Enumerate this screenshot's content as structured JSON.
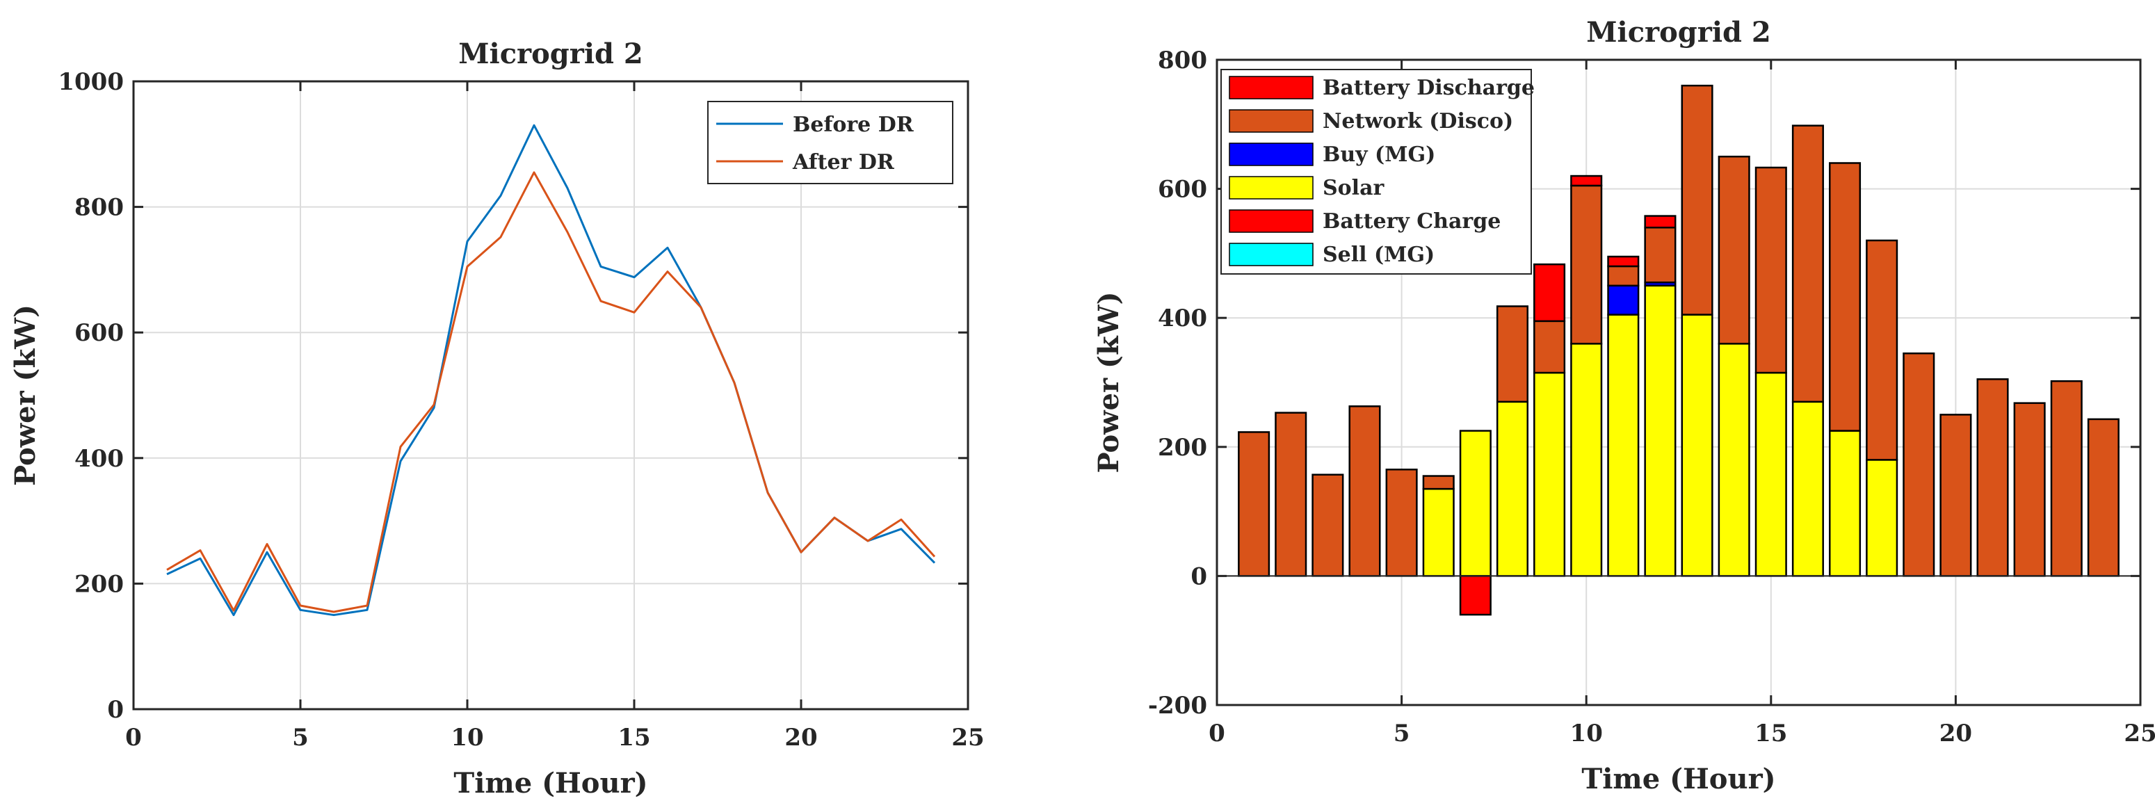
{
  "colors": {
    "before_dr": "#0072BD",
    "after_dr": "#D95319",
    "network": "#D95319",
    "solar": "#FFFF00",
    "battery": "#FF0000",
    "buy": "#0000FF",
    "sell": "#00FFFF"
  },
  "chart_data": [
    {
      "type": "line",
      "title": "Microgrid 2",
      "xlabel": "Time (Hour)",
      "ylabel": "Power (kW)",
      "xlim": [
        0,
        25
      ],
      "ylim": [
        0,
        1000
      ],
      "xticks": [
        "0",
        "5",
        "10",
        "15",
        "20",
        "25"
      ],
      "yticks": [
        "0",
        "200",
        "400",
        "600",
        "800",
        "1000"
      ],
      "grid": true,
      "legend_position": "top-right",
      "x": [
        1,
        2,
        3,
        4,
        5,
        6,
        7,
        8,
        9,
        10,
        11,
        12,
        13,
        14,
        15,
        16,
        17,
        18,
        19,
        20,
        21,
        22,
        23,
        24
      ],
      "series": [
        {
          "name": "Before DR",
          "color": "#0072BD",
          "values": [
            215,
            240,
            150,
            250,
            158,
            150,
            158,
            395,
            480,
            745,
            818,
            930,
            830,
            705,
            688,
            735,
            640,
            520,
            345,
            250,
            305,
            268,
            287,
            233
          ]
        },
        {
          "name": "After DR",
          "color": "#D95319",
          "values": [
            222,
            253,
            157,
            263,
            165,
            155,
            165,
            418,
            485,
            705,
            752,
            855,
            760,
            650,
            632,
            697,
            640,
            520,
            345,
            250,
            305,
            268,
            302,
            243
          ]
        }
      ]
    },
    {
      "type": "bar",
      "stacked": true,
      "title": "Microgrid 2",
      "xlabel": "Time (Hour)",
      "ylabel": "Power (kW)",
      "xlim": [
        0,
        25
      ],
      "ylim": [
        -200,
        800
      ],
      "xticks": [
        "0",
        "5",
        "10",
        "15",
        "20",
        "25"
      ],
      "yticks": [
        "-200",
        "0",
        "200",
        "400",
        "600",
        "800"
      ],
      "grid": true,
      "legend_position": "top-left",
      "x": [
        1,
        2,
        3,
        4,
        5,
        6,
        7,
        8,
        9,
        10,
        11,
        12,
        13,
        14,
        15,
        16,
        17,
        18,
        19,
        20,
        21,
        22,
        23,
        24
      ],
      "series": [
        {
          "name": "Battery Discharge",
          "color": "#FF0000",
          "values": [
            0,
            0,
            0,
            0,
            0,
            0,
            0,
            0,
            88,
            15,
            15,
            18,
            0,
            0,
            0,
            0,
            0,
            0,
            0,
            0,
            0,
            0,
            0,
            0
          ]
        },
        {
          "name": "Network (Disco)",
          "color": "#D95319",
          "values": [
            223,
            253,
            157,
            263,
            165,
            20,
            0,
            148,
            80,
            245,
            30,
            85,
            355,
            290,
            318,
            428,
            415,
            340,
            345,
            250,
            305,
            268,
            302,
            243
          ]
        },
        {
          "name": "Buy (MG)",
          "color": "#0000FF",
          "values": [
            0,
            0,
            0,
            0,
            0,
            0,
            0,
            0,
            0,
            0,
            45,
            5,
            0,
            0,
            0,
            0,
            0,
            0,
            0,
            0,
            0,
            0,
            0,
            0
          ]
        },
        {
          "name": "Solar",
          "color": "#FFFF00",
          "values": [
            0,
            0,
            0,
            0,
            0,
            135,
            225,
            270,
            315,
            360,
            405,
            450,
            405,
            360,
            315,
            270,
            225,
            180,
            0,
            0,
            0,
            0,
            0,
            0
          ]
        },
        {
          "name": "Battery Charge",
          "color": "#FF0000",
          "values": [
            0,
            0,
            0,
            0,
            0,
            0,
            -60,
            0,
            0,
            0,
            0,
            0,
            0,
            0,
            0,
            0,
            0,
            0,
            0,
            0,
            0,
            0,
            0,
            0
          ]
        },
        {
          "name": "Sell (MG)",
          "color": "#00FFFF",
          "values": [
            0,
            0,
            0,
            0,
            0,
            0,
            0,
            0,
            0,
            0,
            0,
            0,
            0,
            0,
            0,
            0,
            0,
            0,
            0,
            0,
            0,
            0,
            0,
            0
          ]
        }
      ]
    }
  ]
}
